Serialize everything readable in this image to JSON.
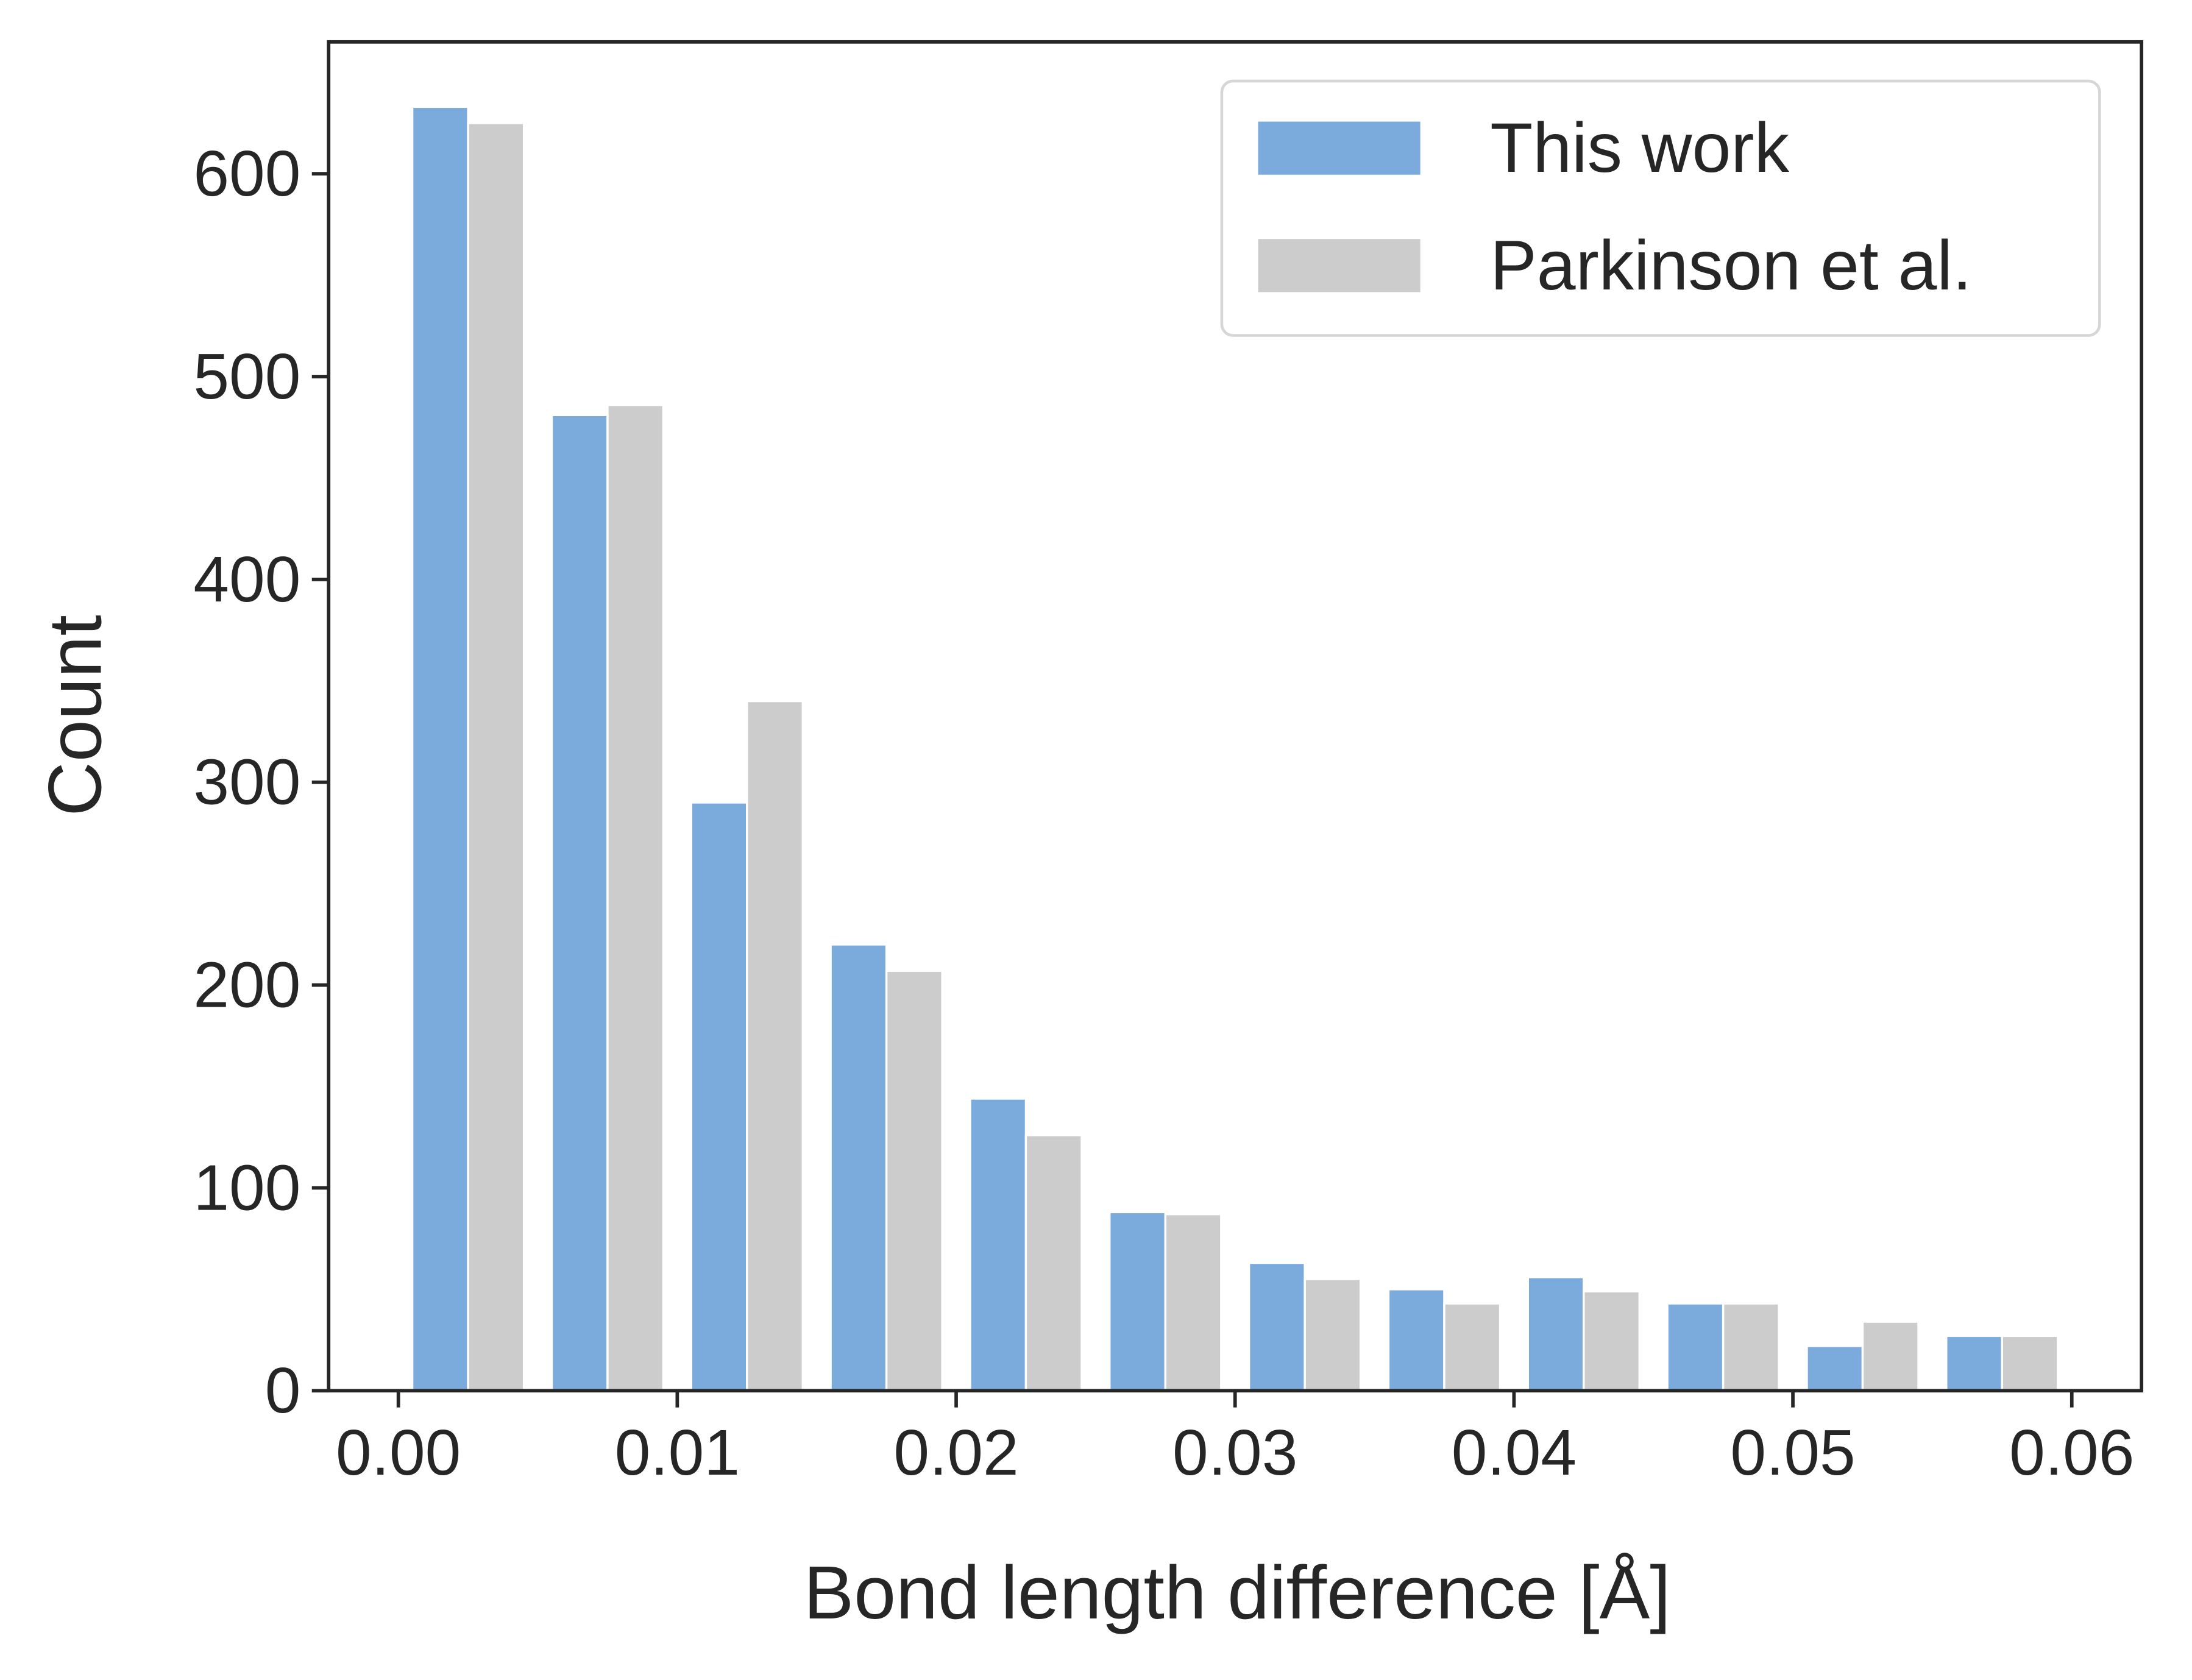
{
  "chart_data": {
    "type": "histogram",
    "xlabel": "Bond length difference [Å]",
    "ylabel": "Count",
    "bins": [
      0,
      0.005,
      0.01,
      0.015,
      0.02,
      0.025,
      0.03,
      0.035,
      0.04,
      0.045,
      0.05,
      0.055,
      0.06
    ],
    "series": [
      {
        "name": "This work",
        "color": "#7aabdc",
        "values": [
          633,
          481,
          290,
          220,
          144,
          88,
          63,
          50,
          56,
          43,
          22,
          27
        ]
      },
      {
        "name": "Parkinson et al.",
        "color": "#cccccc",
        "values": [
          625,
          486,
          340,
          207,
          126,
          87,
          55,
          43,
          49,
          43,
          34,
          27
        ]
      }
    ],
    "xlim": [
      -0.0025,
      0.0625
    ],
    "ylim": [
      0,
      665
    ],
    "xticks": [
      {
        "value": 0,
        "label": "0.00"
      },
      0.01,
      0.02,
      0.03,
      0.04,
      0.05,
      0.06
    ],
    "yticks": [
      0,
      100,
      200,
      300,
      400,
      500,
      600
    ],
    "legend": "upper right",
    "grid": false
  }
}
